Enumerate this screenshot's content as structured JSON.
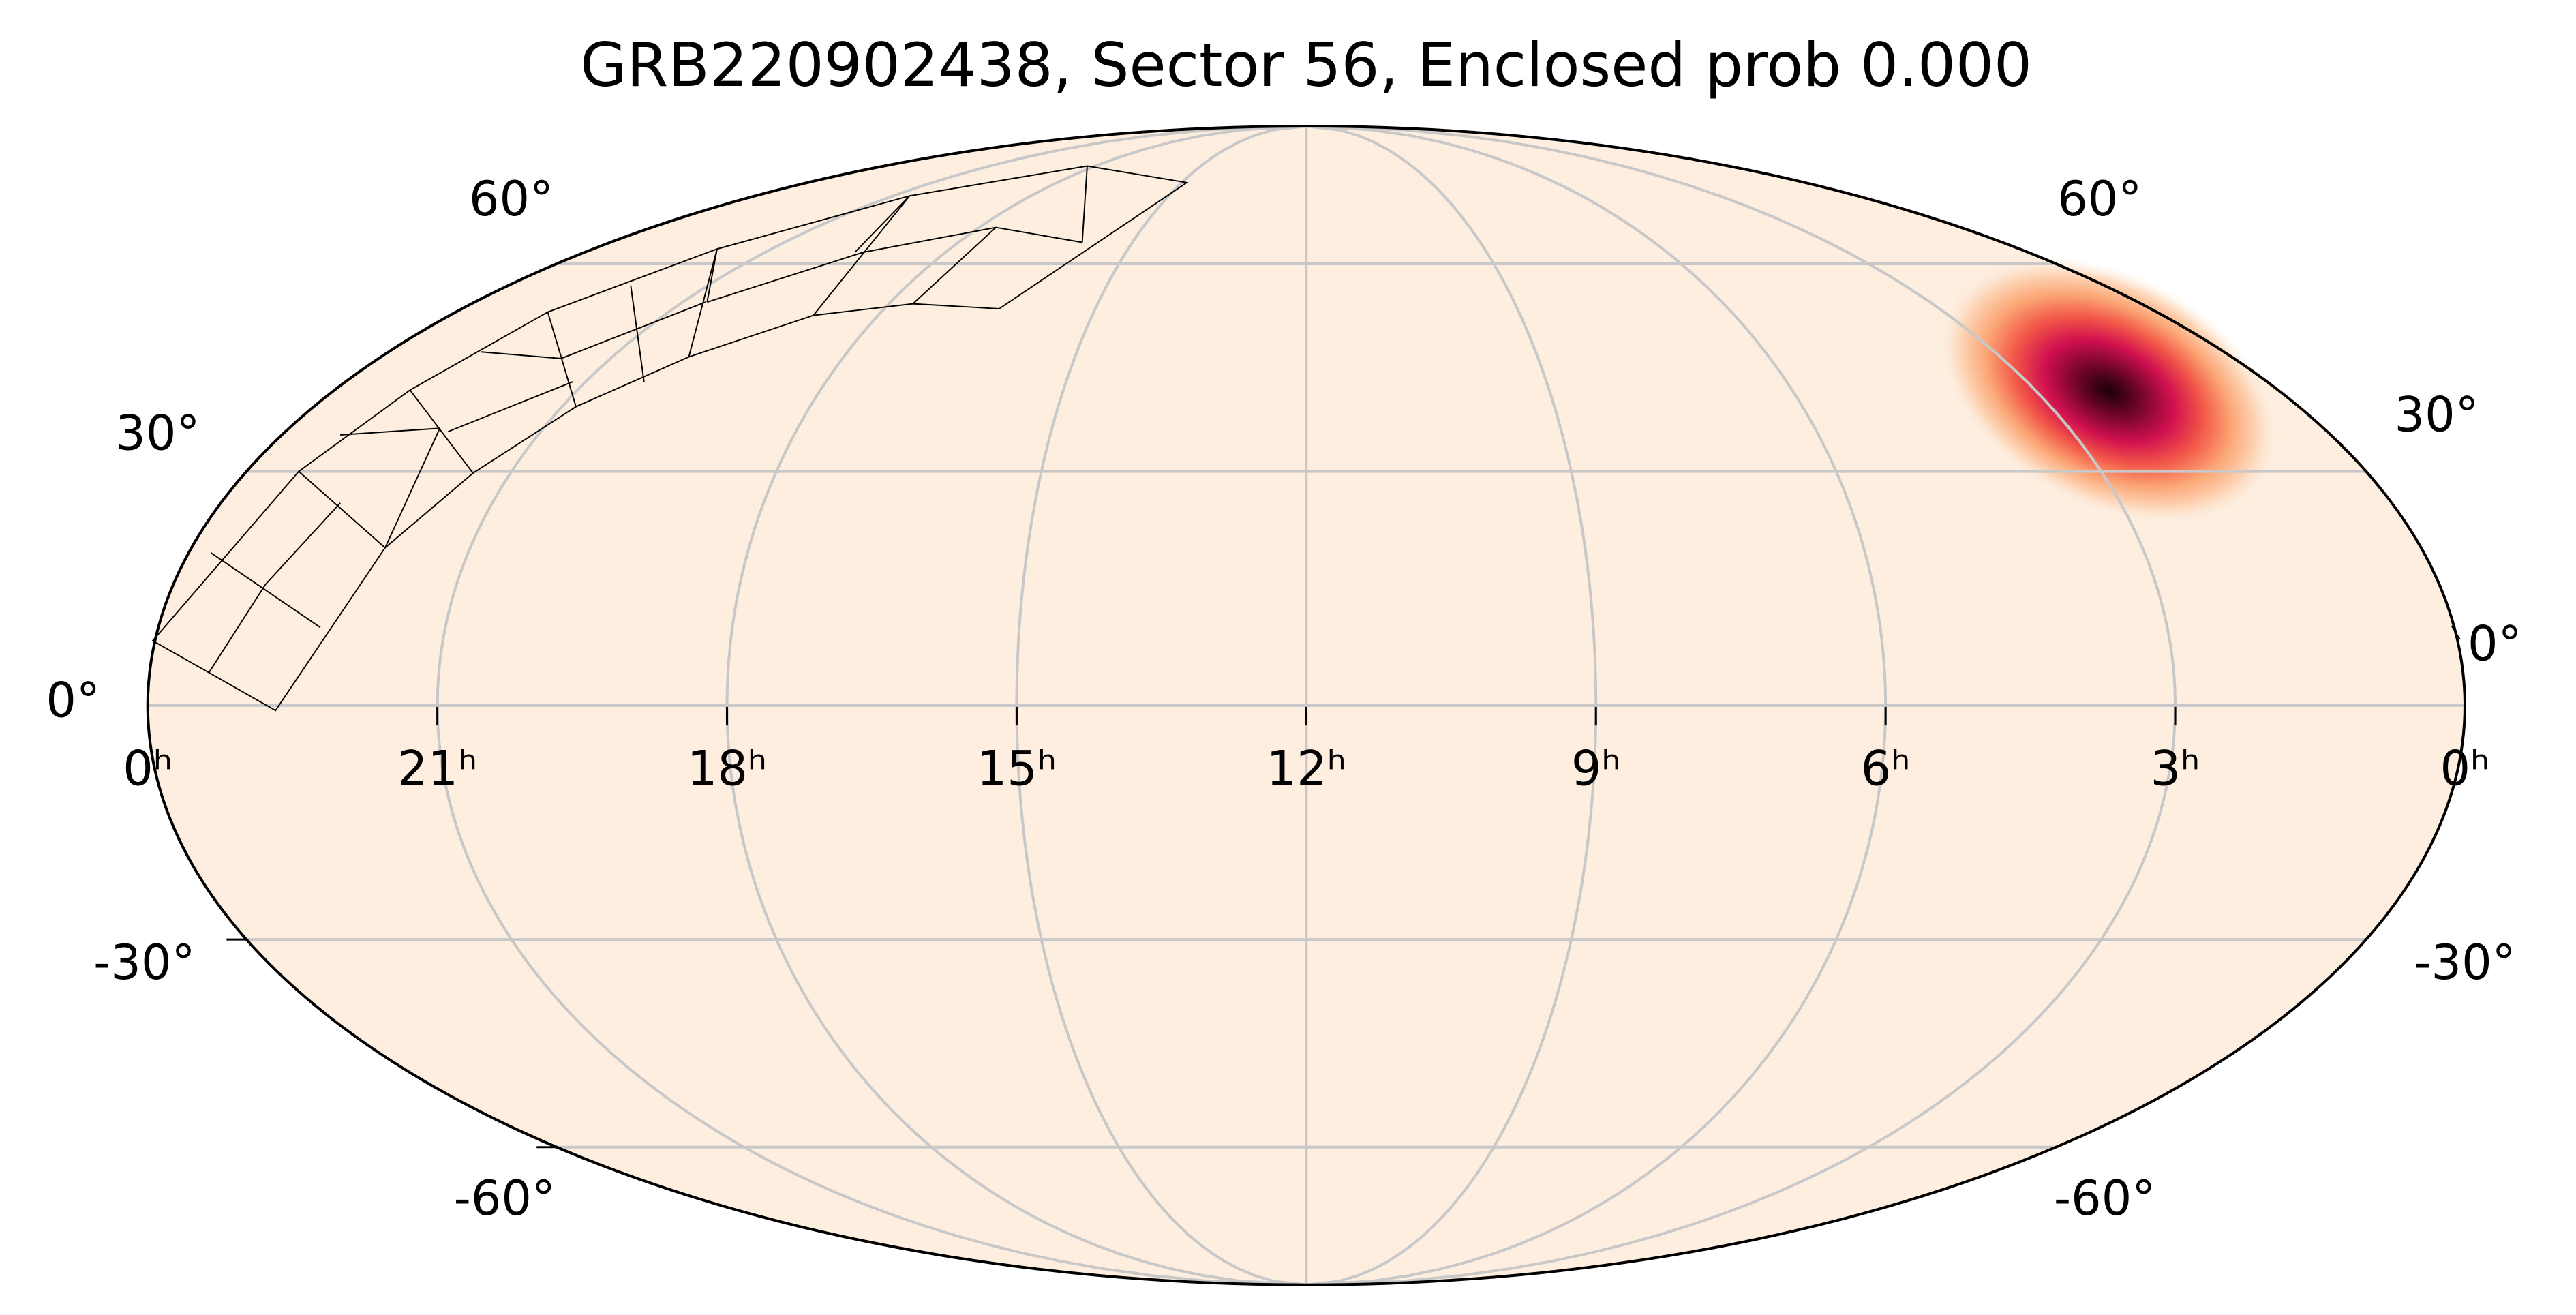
{
  "chart_data": {
    "type": "skymap",
    "projection": "mollweide",
    "title": "GRB220902438, Sector 56, Enclosed prob 0.000",
    "xlim": [
      24,
      0
    ],
    "xticks": [
      {
        "value": 24,
        "label": "0ʰ"
      },
      {
        "value": 21,
        "label": "21ʰ"
      },
      {
        "value": 18,
        "label": "18ʰ"
      },
      {
        "value": 15,
        "label": "15ʰ"
      },
      {
        "value": 12,
        "label": "12ʰ"
      },
      {
        "value": 9,
        "label": "9ʰ"
      },
      {
        "value": 6,
        "label": "6ʰ"
      },
      {
        "value": 3,
        "label": "3ʰ"
      },
      {
        "value": 0,
        "label": "0ʰ"
      }
    ],
    "ylim": [
      -90,
      90
    ],
    "yticks": [
      {
        "value": 60,
        "label": "60°"
      },
      {
        "value": 30,
        "label": "30°"
      },
      {
        "value": 0,
        "label": "0°"
      },
      {
        "value": -30,
        "label": "-30°"
      },
      {
        "value": -60,
        "label": "-60°"
      }
    ],
    "grid": true,
    "background_color": "#fdeee0",
    "peak": {
      "x": 2.1,
      "y": 41
    }
  }
}
